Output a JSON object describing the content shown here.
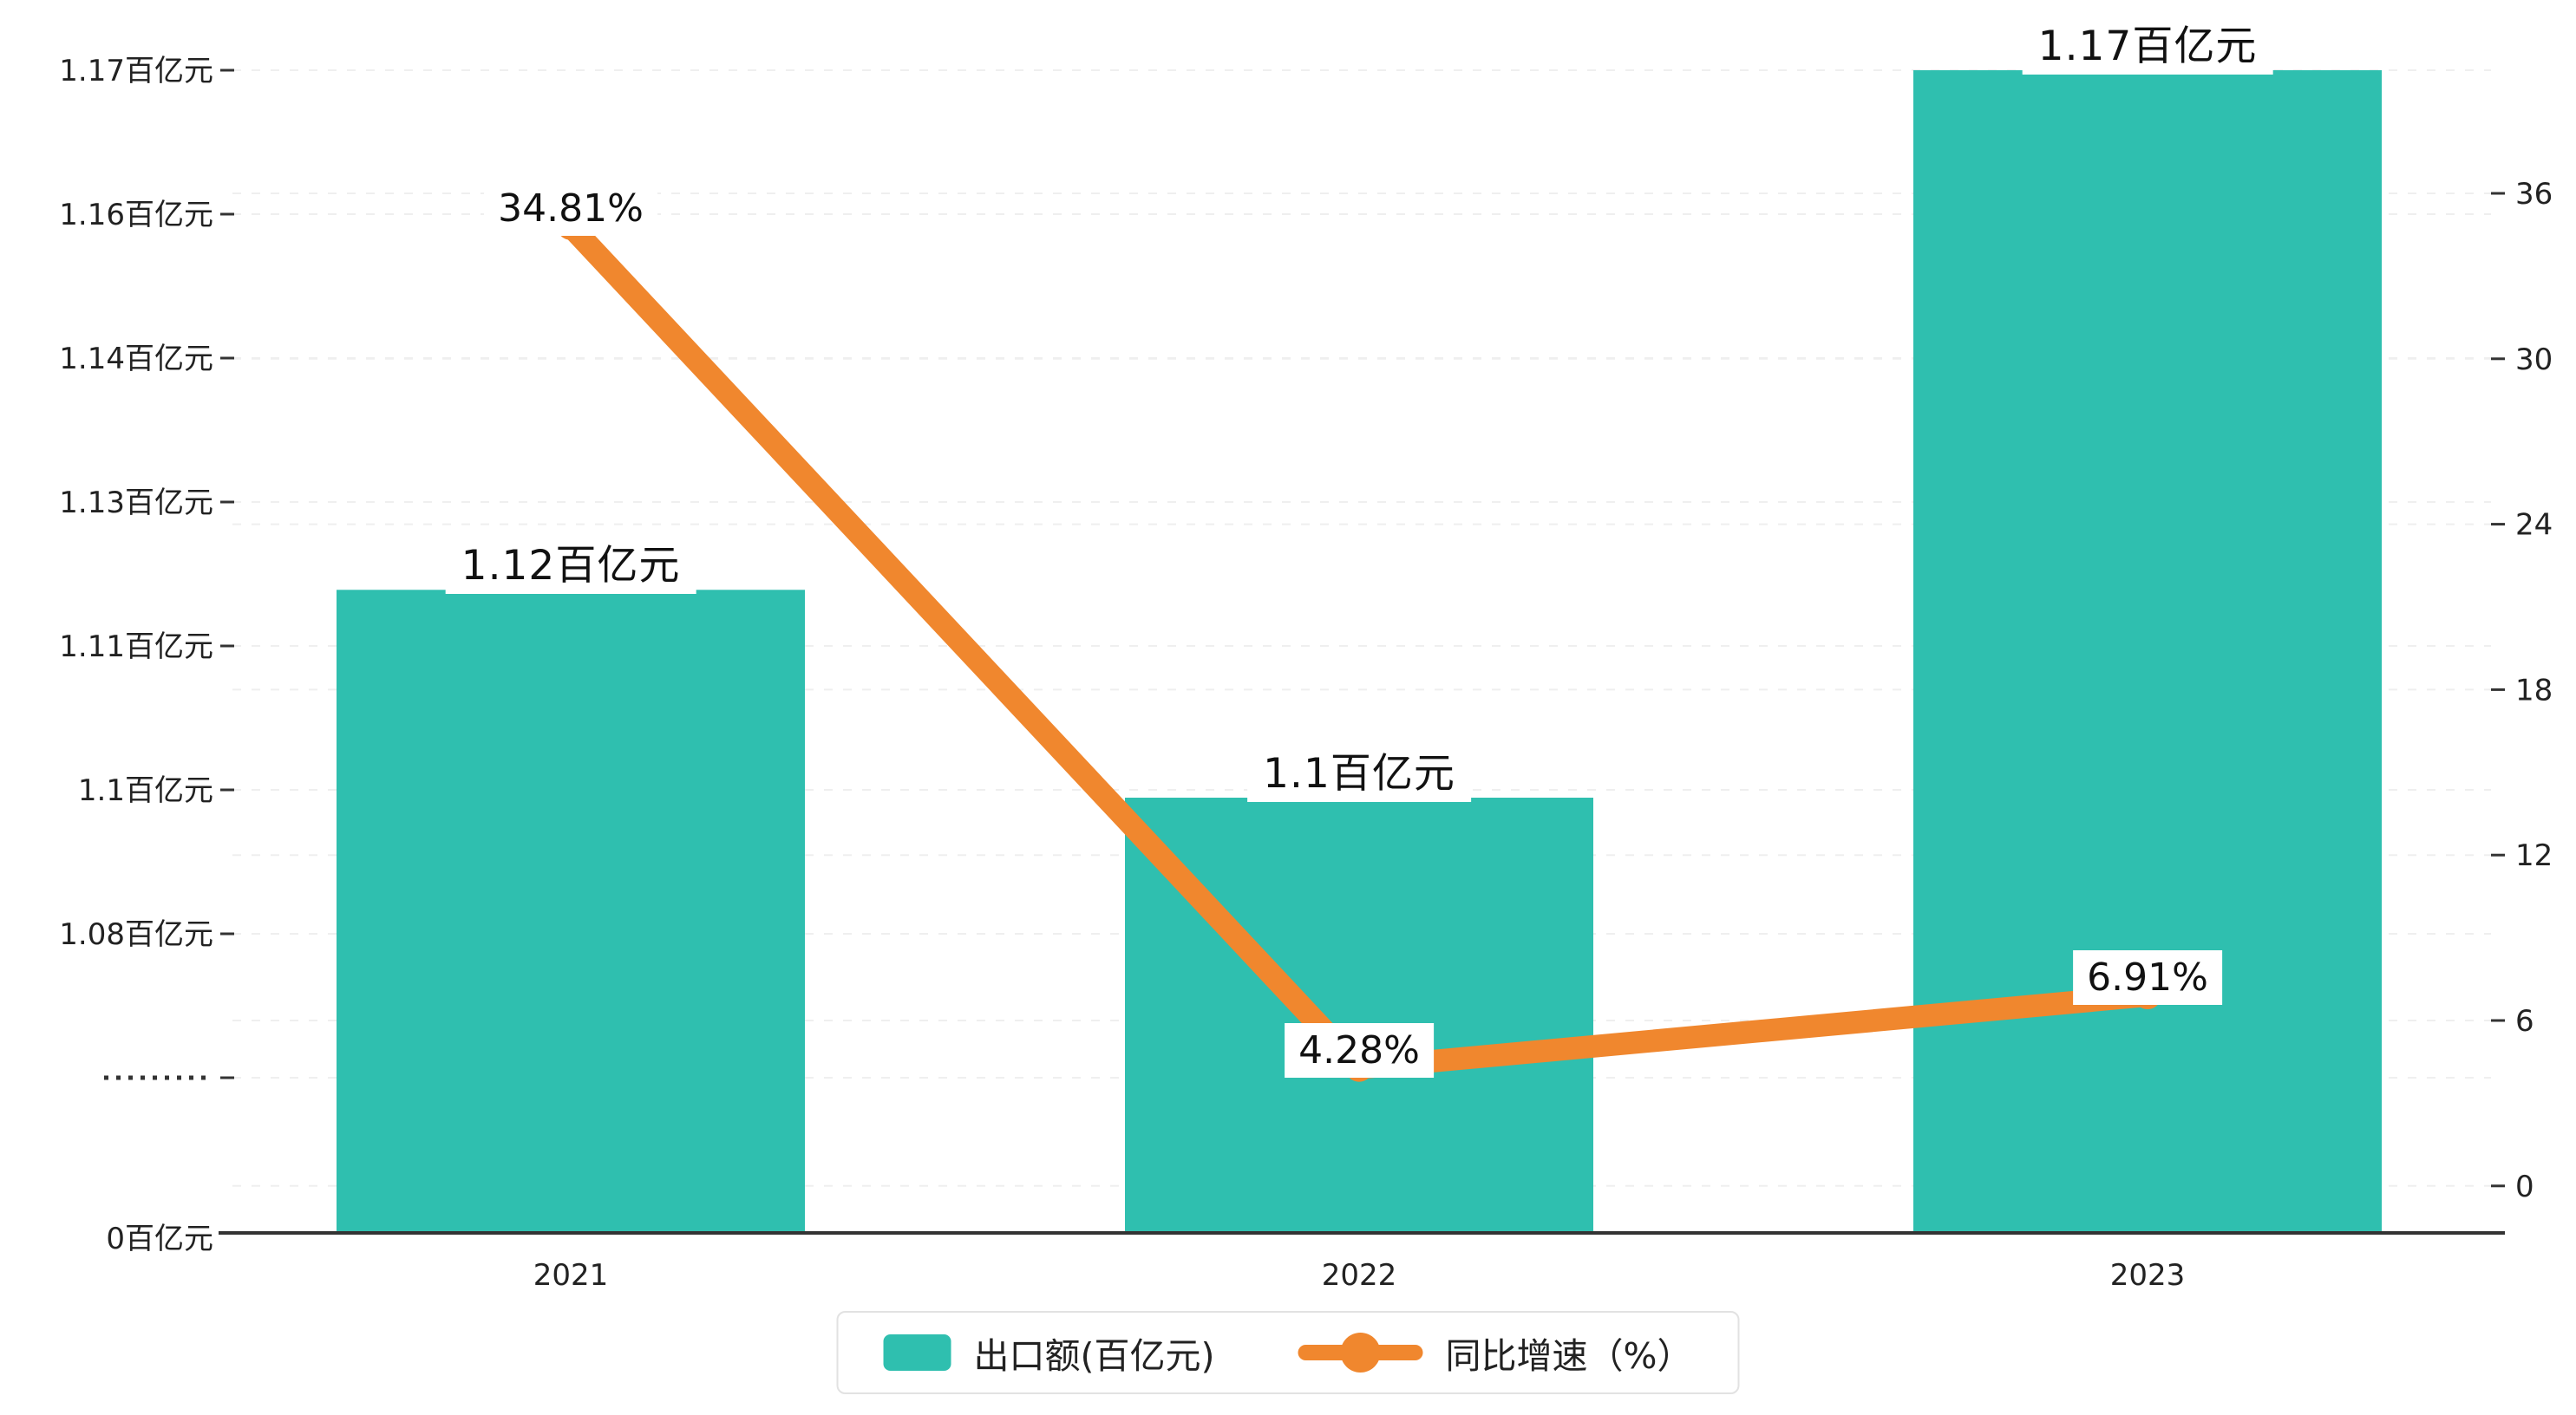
{
  "chart_data": {
    "type": "bar",
    "combo": "bar+line",
    "title": "",
    "categories": [
      "2021",
      "2022",
      "2023"
    ],
    "series": [
      {
        "name": "出口额(百亿元)",
        "type": "bar",
        "axis": "left",
        "color": "#2FBFAF",
        "values": [
          1.12,
          1.1,
          1.17
        ],
        "labels": [
          "1.12百亿元",
          "1.1百亿元",
          "1.17百亿元"
        ]
      },
      {
        "name": "同比增速（%）",
        "type": "line",
        "axis": "right",
        "color": "#F0872E",
        "values": [
          34.81,
          4.28,
          6.91
        ],
        "labels": [
          "34.81%",
          "4.28%",
          "6.91%"
        ]
      }
    ],
    "left_axis": {
      "tick_labels": [
        "1.17百亿元",
        "1.16百亿元",
        "1.14百亿元",
        "1.13百亿元",
        "1.11百亿元",
        "1.1百亿元",
        "1.08百亿元"
      ],
      "break_marker": "·········",
      "zero_label": "0百亿元"
    },
    "right_axis": {
      "tick_labels": [
        "36",
        "30",
        "24",
        "18",
        "12",
        "6",
        "0"
      ],
      "range": [
        0,
        36
      ]
    },
    "grid": true,
    "legend_position": "bottom"
  },
  "legend": {
    "bar_label": "出口额(百亿元)",
    "line_label": "同比增速（%）"
  },
  "colors": {
    "bar": "#2FBFAF",
    "line": "#F0872E",
    "axis": "#333333",
    "grid": "#efefef",
    "label_text": "#111111"
  }
}
